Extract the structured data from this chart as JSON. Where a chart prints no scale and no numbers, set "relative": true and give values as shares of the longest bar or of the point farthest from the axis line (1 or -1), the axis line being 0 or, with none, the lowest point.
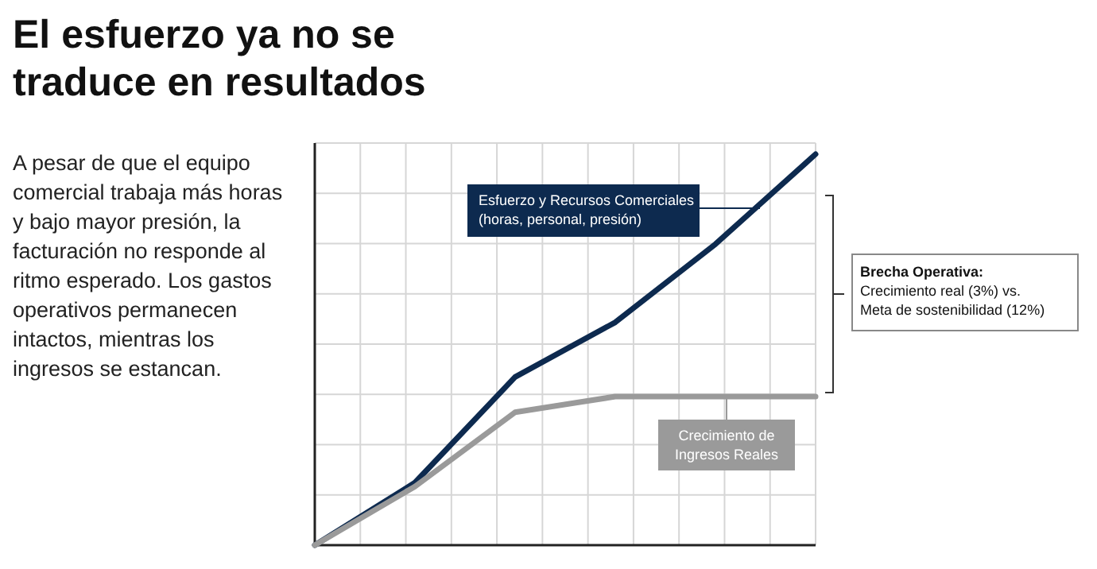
{
  "chart_data": {
    "type": "line",
    "title": "El esfuerzo ya no se traduce en resultados",
    "subtitle": "A pesar de que el equipo comercial trabaja más horas y bajo mayor presión, la facturación no responde al ritmo esperado. Los gastos operativos permanecen intactos, mientras los ingresos se estancan.",
    "categories": [
      null,
      null,
      null,
      null,
      null,
      null
    ],
    "relative": true,
    "grid": true,
    "series": [
      {
        "name": "Esfuerzo y Recursos Comerciales (horas, personal, presión)",
        "color": "#0d2a4f",
        "values": [
          0,
          0.16,
          0.43,
          0.57,
          0.77,
          1
        ]
      },
      {
        "name": "Crecimiento de Ingresos Reales",
        "color": "#9a9a9a",
        "values": [
          0,
          0.15,
          0.34,
          0.38,
          0.38,
          0.38
        ]
      }
    ],
    "annotations": [
      "Brecha Operativa:",
      "Crecimiento real (3%) vs. Meta de sostenibilidad (12%)"
    ]
  }
}
